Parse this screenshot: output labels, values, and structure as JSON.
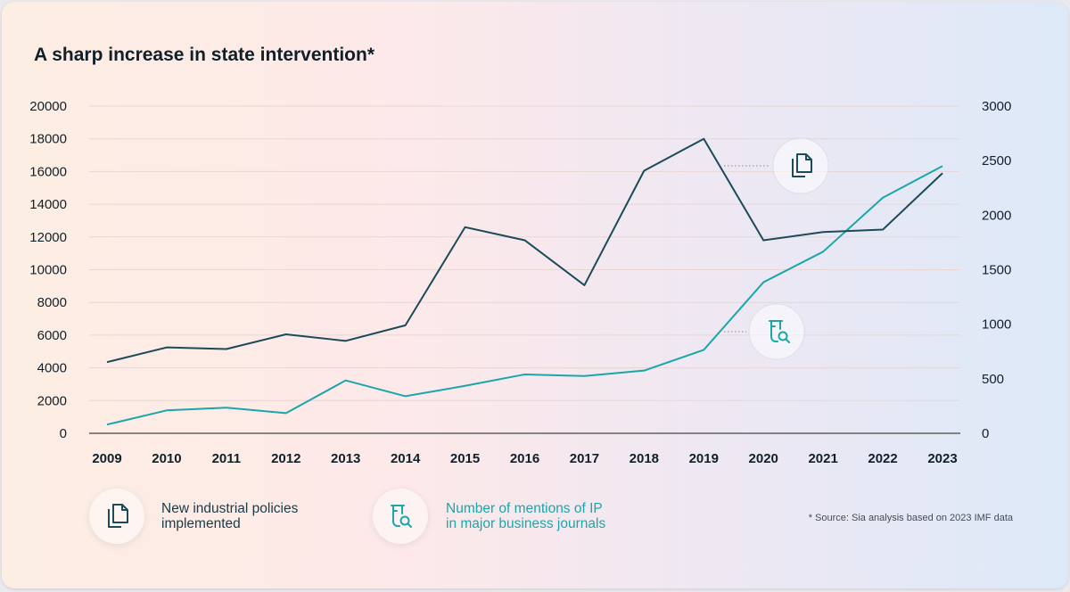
{
  "title": "A sharp increase in state intervention*",
  "source_note": "* Source: Sia analysis based on 2023 IMF data",
  "colors": {
    "policies": "#1b4a5a",
    "mentions": "#1aa6aa",
    "grid": "#e7d6d3",
    "axis": "#444444",
    "text": "#10202a"
  },
  "chart_data": {
    "type": "line",
    "title": "A sharp increase in state intervention*",
    "x": [
      "2009",
      "2010",
      "2011",
      "2012",
      "2013",
      "2014",
      "2015",
      "2016",
      "2017",
      "2018",
      "2019",
      "2020",
      "2021",
      "2022",
      "2023"
    ],
    "y_left": {
      "min": 0,
      "max": 20000,
      "ticks": [
        0,
        2000,
        4000,
        6000,
        8000,
        10000,
        12000,
        14000,
        16000,
        18000,
        20000
      ]
    },
    "y_right": {
      "min": 0,
      "max": 3000,
      "ticks": [
        0,
        500,
        1000,
        1500,
        2000,
        2500,
        3000
      ]
    },
    "grid": true,
    "legend_position": "bottom",
    "series": [
      {
        "name": "New industrial policies implemented",
        "axis": "left",
        "icon": "document-copy-icon",
        "values": [
          4350,
          5250,
          5150,
          6050,
          5650,
          6600,
          12600,
          11800,
          9050,
          16050,
          18000,
          11800,
          12300,
          12450,
          15900
        ]
      },
      {
        "name": "Number of mentions of IP in major business journals",
        "axis": "right",
        "icon": "test-tube-search-icon",
        "values": [
          80,
          210,
          235,
          185,
          485,
          340,
          435,
          540,
          525,
          575,
          765,
          1385,
          1665,
          2160,
          2450
        ]
      }
    ]
  },
  "legend": [
    {
      "label": "New industrial policies\nimplemented",
      "icon": "document-copy-icon"
    },
    {
      "label": "Number of mentions of IP\nin major business journals",
      "icon": "test-tube-search-icon"
    }
  ]
}
